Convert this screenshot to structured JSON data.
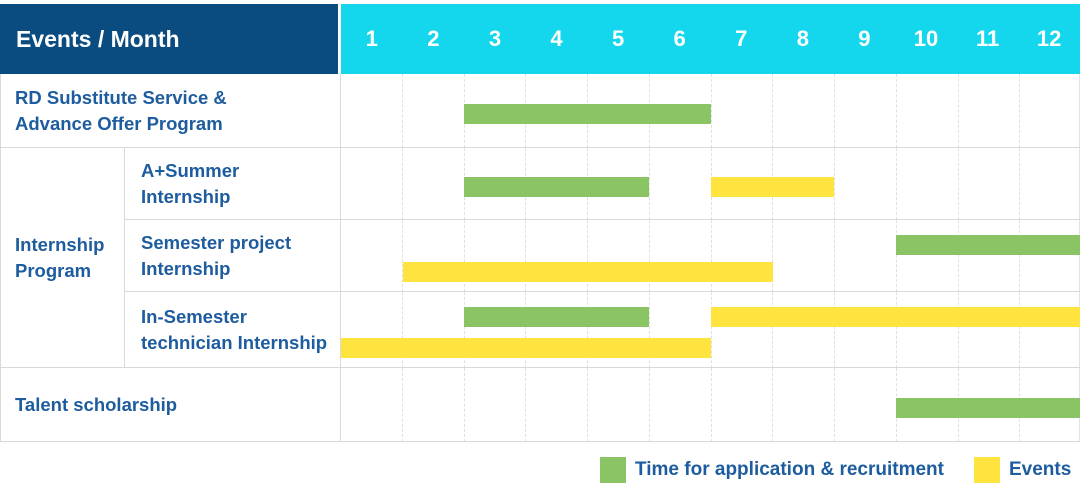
{
  "header": {
    "title": "Events / Month",
    "months": [
      "1",
      "2",
      "3",
      "4",
      "5",
      "6",
      "7",
      "8",
      "9",
      "10",
      "11",
      "12"
    ]
  },
  "colors": {
    "navy_header": "#0b4c80",
    "cyan_header": "#14d7ee",
    "label_blue": "#1d5c9e",
    "recruitment_green": "#8ac464",
    "events_yellow": "#ffe33f",
    "grid_line": "#d9d9d9"
  },
  "legend": [
    {
      "name": "recruitment",
      "label": "Time for application & recruitment",
      "color": "#8ac464"
    },
    {
      "name": "events",
      "label": "Events",
      "color": "#ffe33f"
    }
  ],
  "chart_data": {
    "type": "bar",
    "subtype": "gantt-timeline",
    "title": "Events / Month",
    "x_categories": [
      "1",
      "2",
      "3",
      "4",
      "5",
      "6",
      "7",
      "8",
      "9",
      "10",
      "11",
      "12"
    ],
    "x_range": [
      1,
      12
    ],
    "grid": true,
    "legend_position": "bottom-right",
    "series_legend": [
      "Time for application & recruitment",
      "Events"
    ],
    "rows": [
      {
        "group": null,
        "label_lines": [
          "RD Substitute Service &",
          "Advance Offer Program"
        ],
        "bars": [
          {
            "series": "recruitment",
            "start_month": 3,
            "end_month": 6,
            "lane": 0
          }
        ]
      },
      {
        "group": "Internship Program",
        "label_lines": [
          "A+Summer",
          "Internship"
        ],
        "bars": [
          {
            "series": "recruitment",
            "start_month": 3,
            "end_month": 5,
            "lane": 0
          },
          {
            "series": "events",
            "start_month": 7,
            "end_month": 8,
            "lane": 0
          }
        ]
      },
      {
        "group": "Internship Program",
        "label_lines": [
          "Semester project",
          "Internship"
        ],
        "bars": [
          {
            "series": "recruitment",
            "start_month": 10,
            "end_month": 12,
            "lane": 0
          },
          {
            "series": "events",
            "start_month": 2,
            "end_month": 7,
            "lane": 1
          }
        ]
      },
      {
        "group": "Internship Program",
        "label_lines": [
          "In-Semester",
          "technician Internship"
        ],
        "bars": [
          {
            "series": "recruitment",
            "start_month": 3,
            "end_month": 5,
            "lane": 0
          },
          {
            "series": "events",
            "start_month": 7,
            "end_month": 12,
            "lane": 0
          },
          {
            "series": "events",
            "start_month": 1,
            "end_month": 6,
            "lane": 1
          }
        ]
      },
      {
        "group": null,
        "label_lines": [
          "Talent scholarship"
        ],
        "bars": [
          {
            "series": "recruitment",
            "start_month": 10,
            "end_month": 12,
            "lane": 0
          }
        ]
      }
    ],
    "group_label_lines": [
      "Internship",
      "Program"
    ]
  }
}
